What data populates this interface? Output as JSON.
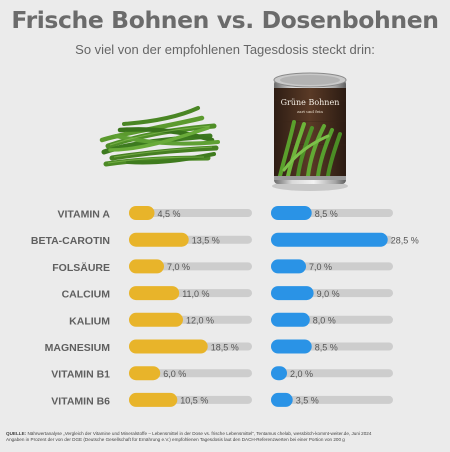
{
  "header": {
    "title": "Frische Bohnen vs. Dosenbohnen",
    "subtitle": "So viel von der empfohlenen Tagesdosis steckt drin:"
  },
  "can": {
    "label_main": "Grüne Bohnen",
    "label_sub": "zart und fein"
  },
  "colors": {
    "fresh_bar": "#e8b42a",
    "canned_bar": "#2a93e6",
    "track": "#cdcdcd",
    "nutrient_text": "#5f5f5f",
    "background": "#ebebeb"
  },
  "chart_data": {
    "type": "bar",
    "categories": [
      "VITAMIN A",
      "BETA-CAROTIN",
      "FOLSÄURE",
      "CALCIUM",
      "KALIUM",
      "MAGNESIUM",
      "VITAMIN B1",
      "VITAMIN B6"
    ],
    "series": [
      {
        "values": [
          4.5,
          13.5,
          7.0,
          11.0,
          12.0,
          18.5,
          6.0,
          10.5
        ],
        "labels": [
          "4,5 %",
          "13,5 %",
          "7,0 %",
          "11,0 %",
          "12,0 %",
          "18,5 %",
          "6,0 %",
          "10,5 %"
        ],
        "color": "#e8b42a"
      },
      {
        "values": [
          8.5,
          28.5,
          7.0,
          9.0,
          8.0,
          8.5,
          2.0,
          3.5
        ],
        "labels": [
          "8,5 %",
          "28,5 %",
          "7,0 %",
          "9,0 %",
          "8,0 %",
          "8,5 %",
          "2,0 %",
          "3,5 %"
        ],
        "color": "#2a93e6"
      }
    ],
    "xlim": [
      0,
      30
    ],
    "grid": false,
    "legend": "none"
  },
  "source": {
    "label": "QUELLE:",
    "line1": "Nährwertanalyse „Vergleich der Vitamine und Mineralstoffe – Lebensmittel in der Dose vs. frische Lebensmittel“, Tentamus chelab, wessbitch-kommt-weiter.de, Juni 2024",
    "line2": "Angaben in Prozent der von der DGE (Deutsche Gesellschaft für Ernährung e.V.) empfohlenen Tagesdosis laut den DACH-Referenzwerten bei einer Portion von 200 g"
  }
}
